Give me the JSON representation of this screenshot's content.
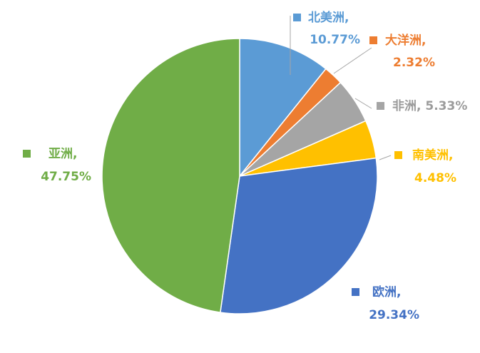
{
  "chart_data": {
    "type": "pie",
    "start_angle_deg": 0,
    "direction": "clockwise",
    "legend": "none",
    "data_labels": "category and percentage, beside slices",
    "slices": [
      {
        "category": "北美洲",
        "sep": ",",
        "value": 10.77,
        "display": "10.77%",
        "color": "#5B9BD5"
      },
      {
        "category": "大洋洲",
        "sep": ",",
        "value": 2.32,
        "display": "2.32%",
        "color": "#ED7D31"
      },
      {
        "category": "非洲",
        "sep": ",",
        "value": 5.33,
        "display": "5.33%",
        "color": "#A5A5A5"
      },
      {
        "category": "南美洲",
        "sep": ",",
        "value": 4.48,
        "display": "4.48%",
        "color": "#FFC000"
      },
      {
        "category": "欧洲",
        "sep": ",",
        "value": 29.34,
        "display": "29.34%",
        "color": "#4472C4"
      },
      {
        "category": "亚洲",
        "sep": ",",
        "value": 47.75,
        "display": "47.75%",
        "color": "#70AD47"
      }
    ]
  }
}
